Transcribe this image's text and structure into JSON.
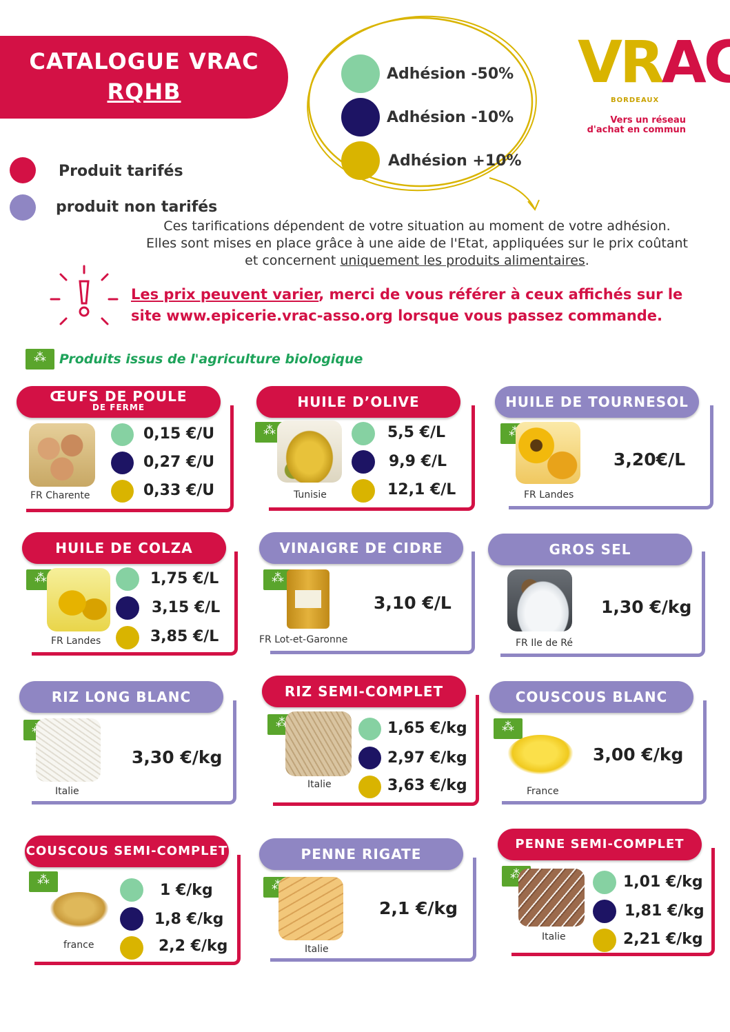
{
  "header": {
    "title": "CATALOGUE VRAC",
    "subtitle": "RQHB"
  },
  "legend": {
    "priced": "Produit tarifés",
    "unpriced": "produit non tarifés",
    "colors": {
      "priced": "#d31145",
      "unpriced": "#8f86c3"
    }
  },
  "adhesion": [
    {
      "label": "Adhésion -50%",
      "color": "#86d1a2"
    },
    {
      "label": "Adhésion -10%",
      "color": "#1d1464"
    },
    {
      "label": "Adhésion +10%",
      "color": "#d9b400"
    }
  ],
  "logo": {
    "wordmark": "VRAC",
    "city": "BORDEAUX",
    "tagline_1": "Vers un réseau",
    "tagline_2": "d'achat en commun"
  },
  "info": {
    "line1": "Ces tarifications dépendent de votre situation au moment de votre adhésion.",
    "line2": "Elles sont mises en place grâce à une aide de l'Etat, appliquées sur le prix coûtant",
    "line3_pre": "et concernent ",
    "line3_link": "uniquement les produits alimentaires",
    "line3_post": "."
  },
  "warning": {
    "link": "Les prix peuvent varier",
    "rest1": ", merci de vous référer à ceux affichés sur le",
    "line2": "site www.epicerie.vrac-asso.org  lorsque vous passez commande."
  },
  "bio_label": "Produits issus de l'agriculture biologique",
  "products": {
    "oeufs": {
      "name": "ŒUFS DE POULE",
      "sub": "DE FERME",
      "origin": "FR Charente",
      "prices": [
        "0,15 €/U",
        "0,27 €/U",
        "0,33 €/U"
      ]
    },
    "olive": {
      "name": "HUILE D’OLIVE",
      "origin": "Tunisie",
      "prices": [
        "5,5 €/L",
        "9,9 €/L",
        "12,1 €/L"
      ]
    },
    "tournesol": {
      "name": "HUILE DE TOURNESOL",
      "origin": "FR Landes",
      "price": "3,20€/L"
    },
    "colza": {
      "name": "HUILE DE COLZA",
      "origin": "FR Landes",
      "prices": [
        "1,75 €/L",
        "3,15 €/L",
        "3,85 €/L"
      ]
    },
    "vinaigre": {
      "name": "VINAIGRE DE CIDRE",
      "origin": "FR Lot-et-Garonne",
      "price": "3,10 €/L"
    },
    "sel": {
      "name": "GROS SEL",
      "origin": "FR Ile de Ré",
      "price": "1,30 €/kg"
    },
    "rizblanc": {
      "name": "RIZ LONG BLANC",
      "origin": "Italie",
      "price": "3,30 €/kg"
    },
    "rizcomplet": {
      "name": "RIZ SEMI-COMPLET",
      "origin": "Italie",
      "prices": [
        "1,65 €/kg",
        "2,97 €/kg",
        "3,63 €/kg"
      ]
    },
    "couscousblanc": {
      "name": "COUSCOUS BLANC",
      "origin": "France",
      "price": "3,00 €/kg"
    },
    "couscouscomplet": {
      "name": "COUSCOUS  SEMI-COMPLET",
      "origin": "france",
      "prices": [
        "1 €/kg",
        "1,8 €/kg",
        "2,2  €/kg"
      ]
    },
    "penne": {
      "name": "PENNE RIGATE",
      "origin": "Italie",
      "price": "2,1 €/kg"
    },
    "pennecomplet": {
      "name": "PENNE  SEMI-COMPLET",
      "origin": "Italie",
      "prices": [
        "1,01 €/kg",
        "1,81 €/kg",
        "2,21 €/kg"
      ]
    }
  }
}
